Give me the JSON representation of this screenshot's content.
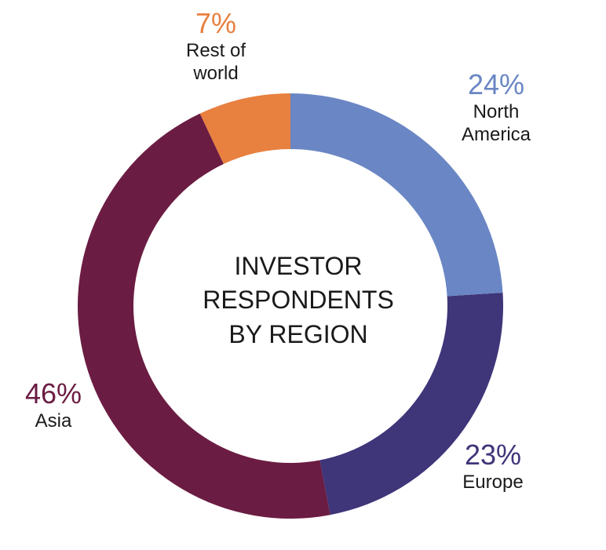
{
  "chart_data": {
    "type": "donut",
    "title": [
      "INVESTOR",
      "RESPONDENTS",
      "BY REGION"
    ],
    "categories": [
      "North America",
      "Europe",
      "Asia",
      "Rest of world"
    ],
    "values": [
      24,
      23,
      46,
      7
    ],
    "value_labels": [
      "24%",
      "23%",
      "46%",
      "7%"
    ],
    "colors": [
      "#6a86c4",
      "#3f3579",
      "#6b1c42",
      "#e8803f"
    ]
  }
}
